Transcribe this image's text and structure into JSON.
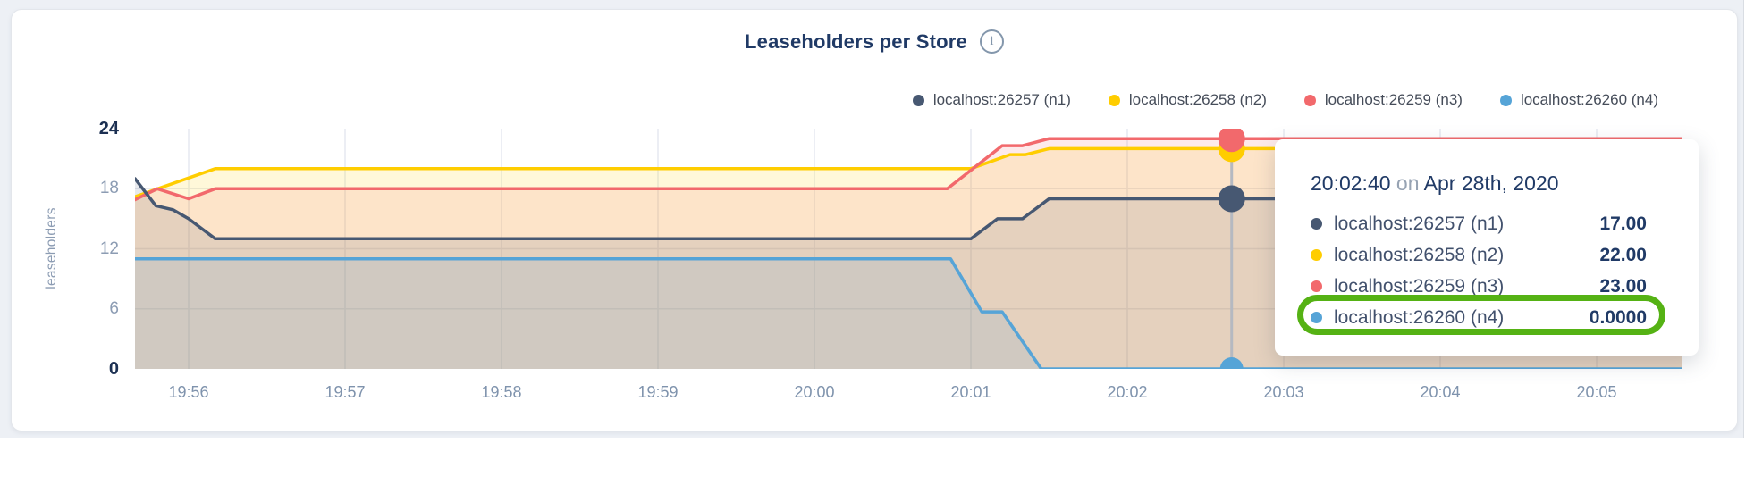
{
  "header": {
    "title": "Leaseholders per Store",
    "info_glyph": "i"
  },
  "legend": {
    "items": [
      {
        "label": "localhost:26257 (n1)",
        "color": "#475872"
      },
      {
        "label": "localhost:26258 (n2)",
        "color": "#ffcd00"
      },
      {
        "label": "localhost:26259 (n3)",
        "color": "#f2696c"
      },
      {
        "label": "localhost:26260 (n4)",
        "color": "#56a4d7"
      }
    ]
  },
  "chart_data": {
    "type": "line",
    "title": "Leaseholders per Store",
    "ylabel": "leaseholders",
    "xlabel": "",
    "ylim": [
      0,
      24
    ],
    "grid": true,
    "legend_position": "top-right",
    "x_ticks": [
      "19:56",
      "19:57",
      "19:58",
      "19:59",
      "20:00",
      "20:01",
      "20:02",
      "20:03",
      "20:04",
      "20:05"
    ],
    "y_ticks": [
      {
        "v": 0,
        "label": "0",
        "bold": true
      },
      {
        "v": 6,
        "label": "6",
        "bold": false
      },
      {
        "v": 12,
        "label": "12",
        "bold": false
      },
      {
        "v": 18,
        "label": "18",
        "bold": false
      },
      {
        "v": 24,
        "label": "24",
        "bold": true
      }
    ],
    "x_unit": "minutes_after_19:56",
    "series": [
      {
        "name": "localhost:26257 (n1)",
        "color": "#475872",
        "points": [
          [
            -0.343,
            19
          ],
          [
            -0.21,
            16.3
          ],
          [
            -0.1,
            15.9
          ],
          [
            0,
            15
          ],
          [
            0.17,
            13
          ],
          [
            5,
            13
          ],
          [
            5.17,
            15
          ],
          [
            5.33,
            15
          ],
          [
            5.5,
            17
          ],
          [
            9.543,
            17
          ]
        ]
      },
      {
        "name": "localhost:26258 (n2)",
        "color": "#ffcd00",
        "points": [
          [
            -0.343,
            17.2
          ],
          [
            0.17,
            20
          ],
          [
            5,
            20
          ],
          [
            5.25,
            21.4
          ],
          [
            5.35,
            21.4
          ],
          [
            5.5,
            22
          ],
          [
            9.543,
            22
          ]
        ]
      },
      {
        "name": "localhost:26259 (n3)",
        "color": "#f2696c",
        "points": [
          [
            -0.343,
            16.9
          ],
          [
            -0.2,
            18
          ],
          [
            0,
            17
          ],
          [
            0.17,
            18
          ],
          [
            4.85,
            18
          ],
          [
            5.2,
            22.3
          ],
          [
            5.33,
            22.3
          ],
          [
            5.5,
            23
          ],
          [
            9.543,
            23
          ]
        ]
      },
      {
        "name": "localhost:26260 (n4)",
        "color": "#56a4d7",
        "points": [
          [
            -0.343,
            11
          ],
          [
            4.87,
            11
          ],
          [
            5.07,
            5.7
          ],
          [
            5.2,
            5.7
          ],
          [
            5.45,
            0
          ],
          [
            9.543,
            0
          ]
        ]
      }
    ],
    "hover": {
      "t": 6.667,
      "time": "20:02:40",
      "values": [
        17,
        22,
        23,
        0
      ]
    }
  },
  "tooltip": {
    "time": "20:02:40",
    "preposition": "on",
    "date": "Apr 28th, 2020",
    "highlight_color": "#55b214",
    "rows": [
      {
        "name": "localhost:26257 (n1)",
        "value": "17.00",
        "highlighted": false
      },
      {
        "name": "localhost:26258 (n2)",
        "value": "22.00",
        "highlighted": false
      },
      {
        "name": "localhost:26259 (n3)",
        "value": "23.00",
        "highlighted": false
      },
      {
        "name": "localhost:26260 (n4)",
        "value": "0.0000",
        "highlighted": true
      }
    ]
  }
}
